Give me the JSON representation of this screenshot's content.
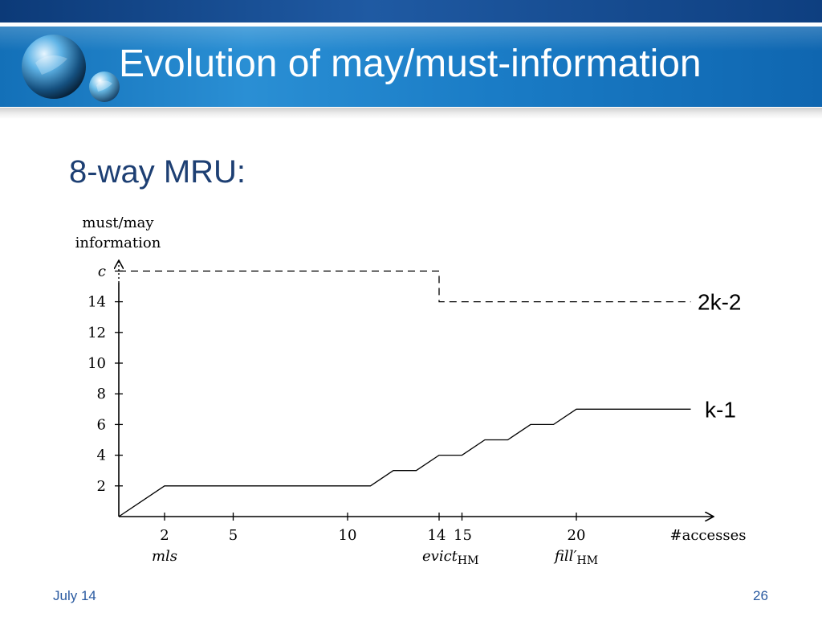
{
  "slide": {
    "title": "Evolution of may/must-information",
    "subtitle": "8-way MRU:"
  },
  "footer": {
    "date": "July 14",
    "page_number": "26"
  },
  "chart_data": {
    "type": "line",
    "ylabel_line1": "must/may",
    "ylabel_line2": "information",
    "xlabel": "#accesses",
    "x_ticks": [
      2,
      5,
      10,
      14,
      15,
      20
    ],
    "x_tick_labels": [
      "2",
      "5",
      "10",
      "14",
      "15",
      "20"
    ],
    "y_ticks": [
      2,
      4,
      6,
      8,
      10,
      12,
      14
    ],
    "y_top_label": "c",
    "x_annotations": [
      {
        "x": 2,
        "text": "mls"
      },
      {
        "x": 14.5,
        "text": "evict",
        "sub": "HM"
      },
      {
        "x": 20,
        "text": "fill′",
        "sub": "HM"
      }
    ],
    "series": [
      {
        "name": "k-1",
        "style": "solid",
        "points": [
          [
            0,
            0
          ],
          [
            2,
            2
          ],
          [
            11,
            2
          ],
          [
            12,
            3
          ],
          [
            13,
            3
          ],
          [
            14,
            4
          ],
          [
            15,
            4
          ],
          [
            16,
            5
          ],
          [
            17,
            5
          ],
          [
            18,
            6
          ],
          [
            19,
            6
          ],
          [
            20,
            7
          ],
          [
            25,
            7
          ]
        ]
      },
      {
        "name": "2k-2",
        "style": "dashed",
        "points": [
          [
            0,
            16
          ],
          [
            14,
            16
          ],
          [
            14,
            14
          ],
          [
            25,
            14
          ]
        ]
      }
    ],
    "colors": {
      "axis": "#000000",
      "line": "#000000"
    }
  }
}
